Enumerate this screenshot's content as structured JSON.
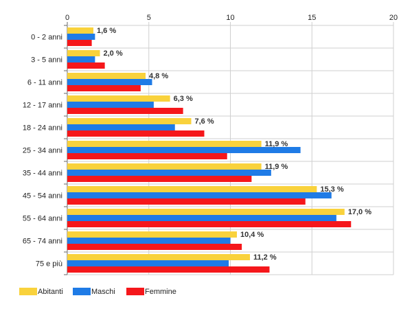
{
  "chart_data": {
    "type": "bar",
    "orientation": "horizontal",
    "categories": [
      "0 - 2 anni",
      "3 - 5 anni",
      "6 - 11 anni",
      "12 - 17 anni",
      "18 - 24 anni",
      "25 - 34 anni",
      "35 - 44 anni",
      "45 - 54 anni",
      "55 - 64 anni",
      "65 - 74 anni",
      "75 e più"
    ],
    "series": [
      {
        "name": "Abitanti",
        "color": "#f9d23c",
        "values": [
          1.6,
          2.0,
          4.8,
          6.3,
          7.6,
          11.9,
          11.9,
          15.3,
          17.0,
          10.4,
          11.2
        ]
      },
      {
        "name": "Maschi",
        "color": "#1f7be6",
        "values": [
          1.7,
          1.7,
          5.2,
          5.3,
          6.6,
          14.3,
          12.5,
          16.2,
          16.5,
          10.0,
          9.9
        ]
      },
      {
        "name": "Femmine",
        "color": "#f5171b",
        "values": [
          1.5,
          2.3,
          4.5,
          7.1,
          8.4,
          9.8,
          11.3,
          14.6,
          17.4,
          10.7,
          12.4
        ]
      }
    ],
    "data_labels": [
      "1,6 %",
      "2,0 %",
      "4,8 %",
      "6,3 %",
      "7,6 %",
      "11,9 %",
      "11,9 %",
      "15,3 %",
      "17,0 %",
      "10,4 %",
      "11,2 %"
    ],
    "x_ticks": [
      "0",
      "5",
      "10",
      "15",
      "20"
    ],
    "xlim": [
      0,
      20
    ],
    "grid": true,
    "legend_position": "bottom-left",
    "title": "",
    "xlabel": "",
    "ylabel": ""
  }
}
